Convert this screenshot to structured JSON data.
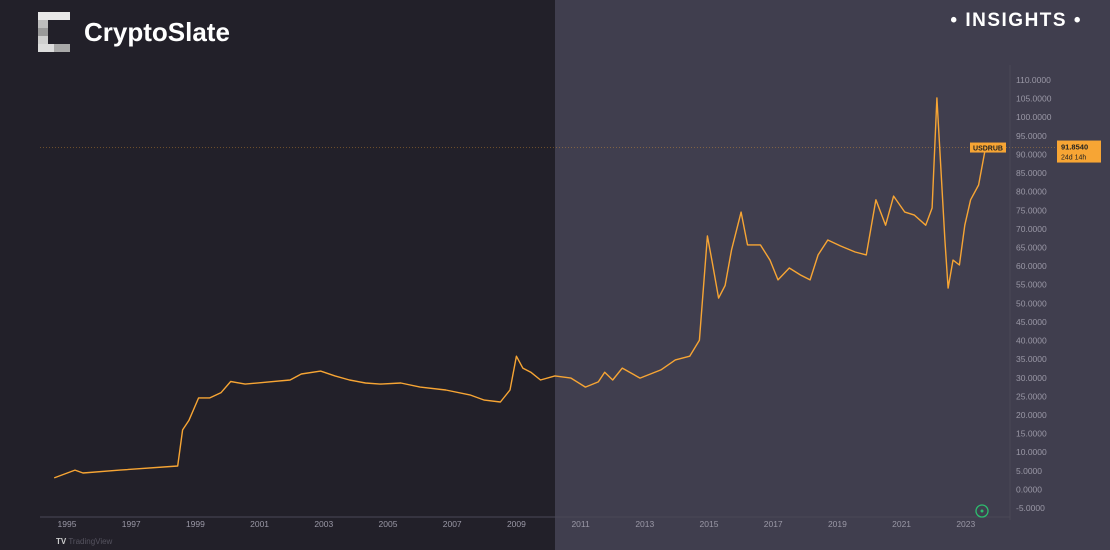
{
  "brand": {
    "name": "CryptoSlate",
    "tag": "• INSIGHTS •"
  },
  "watermark": "TradingView",
  "chart_data": {
    "type": "line",
    "title": "",
    "xlabel": "",
    "ylabel": "",
    "symbol": "USDRUB",
    "last_value": "91.8540",
    "countdown": "24d 14h",
    "color": "#f7a534",
    "xlim": [
      1994.6,
      2024.5
    ],
    "ylim": [
      -5,
      110
    ],
    "x_ticks": [
      "1995",
      "1997",
      "1999",
      "2001",
      "2003",
      "2005",
      "2007",
      "2009",
      "2011",
      "2013",
      "2015",
      "2017",
      "2019",
      "2021",
      "2023"
    ],
    "y_ticks": [
      "110.0000",
      "105.0000",
      "100.0000",
      "95.0000",
      "90.0000",
      "85.0000",
      "80.0000",
      "75.0000",
      "70.0000",
      "65.0000",
      "60.0000",
      "55.0000",
      "50.0000",
      "45.0000",
      "40.0000",
      "35.0000",
      "30.0000",
      "25.0000",
      "20.0000",
      "15.0000",
      "10.0000",
      "5.0000",
      "0.0000",
      "-5.0000"
    ],
    "grid": false,
    "x": [
      1994.6,
      1995.25,
      1995.5,
      1996.65,
      1998.45,
      1998.6,
      1998.8,
      1999.1,
      1999.45,
      1999.8,
      2000.1,
      2000.55,
      2001.95,
      2002.3,
      2002.9,
      2003.35,
      2003.8,
      2004.3,
      2004.75,
      2005.4,
      2006.0,
      2006.8,
      2007.55,
      2008.0,
      2008.5,
      2008.8,
      2009.0,
      2009.2,
      2009.45,
      2009.75,
      2010.2,
      2010.7,
      2011.15,
      2011.55,
      2011.75,
      2012.0,
      2012.3,
      2012.85,
      2013.5,
      2013.95,
      2014.4,
      2014.7,
      2014.95,
      2015.1,
      2015.3,
      2015.5,
      2015.7,
      2016.0,
      2016.2,
      2016.6,
      2016.9,
      2017.15,
      2017.5,
      2017.85,
      2018.15,
      2018.4,
      2018.7,
      2019.1,
      2019.55,
      2019.9,
      2020.2,
      2020.5,
      2020.75,
      2021.1,
      2021.4,
      2021.75,
      2021.95,
      2022.1,
      2022.35,
      2022.45,
      2022.6,
      2022.8,
      2022.97,
      2023.15,
      2023.4,
      2023.6
    ],
    "y": [
      3.1,
      5.2,
      4.4,
      5.2,
      6.3,
      16,
      18.6,
      24.6,
      24.6,
      26,
      29,
      28.3,
      29.4,
      31,
      31.8,
      30.5,
      29.4,
      28.6,
      28.3,
      28.6,
      27.5,
      26.7,
      25.4,
      24,
      23.5,
      26.7,
      35.8,
      32.6,
      31.5,
      29.4,
      30.5,
      29.9,
      27.5,
      28.9,
      31.5,
      29.4,
      32.6,
      29.9,
      32.1,
      34.8,
      35.8,
      40.1,
      68.1,
      61.1,
      51.4,
      54.8,
      64.3,
      74.5,
      65.7,
      65.7,
      61.6,
      56.3,
      59.5,
      57.6,
      56.3,
      63,
      67,
      65.4,
      63.8,
      63,
      77.8,
      71,
      78.8,
      74.5,
      73.7,
      71,
      75.6,
      105.2,
      67,
      54.1,
      61.6,
      60.3,
      71,
      77.8,
      81.8,
      91.2
    ]
  }
}
